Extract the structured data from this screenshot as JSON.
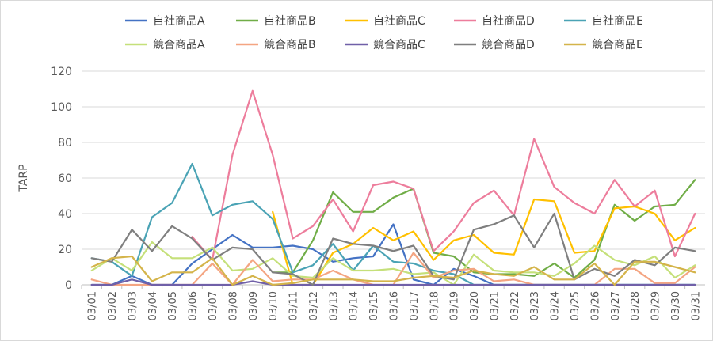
{
  "chart_data": {
    "type": "line",
    "ylabel": "TARP",
    "ylim": [
      0,
      120
    ],
    "yticks": [
      "0",
      "20",
      "40",
      "60",
      "80",
      "100",
      "120"
    ],
    "grid": "horizontal",
    "legend_position": "top",
    "categories": [
      "03/01",
      "03/02",
      "03/03",
      "03/04",
      "03/05",
      "03/06",
      "03/07",
      "03/08",
      "03/09",
      "03/10",
      "03/11",
      "03/12",
      "03/13",
      "03/14",
      "03/15",
      "03/16",
      "03/17",
      "03/18",
      "03/19",
      "03/20",
      "03/21",
      "03/22",
      "03/23",
      "03/24",
      "03/25",
      "03/26",
      "03/27",
      "03/28",
      "03/29",
      "03/30",
      "03/31"
    ],
    "series": [
      {
        "name": "自社商品A",
        "color": "#4472c4",
        "values": [
          0,
          0,
          5,
          0,
          0,
          12,
          20,
          28,
          21,
          21,
          22,
          20,
          13,
          15,
          16,
          34,
          3,
          0,
          9,
          5,
          0,
          0,
          0,
          0,
          0,
          0,
          0,
          0,
          0,
          0,
          0
        ]
      },
      {
        "name": "自社商品B",
        "color": "#70ad47",
        "values": [
          null,
          null,
          null,
          null,
          null,
          null,
          null,
          null,
          null,
          7,
          7,
          25,
          52,
          41,
          41,
          49,
          54,
          18,
          16,
          7,
          6,
          6,
          5,
          12,
          4,
          14,
          45,
          36,
          44,
          45,
          59
        ]
      },
      {
        "name": "自社商品C",
        "color": "#ffc000",
        "values": [
          null,
          null,
          null,
          null,
          null,
          null,
          null,
          null,
          null,
          41,
          0,
          0,
          18,
          23,
          32,
          25,
          30,
          14,
          25,
          28,
          18,
          17,
          48,
          47,
          18,
          19,
          43,
          44,
          40,
          25,
          32
        ]
      },
      {
        "name": "自社商品D",
        "color": "#ed7d9c",
        "values": [
          null,
          null,
          null,
          null,
          null,
          27,
          14,
          73,
          109,
          73,
          26,
          33,
          48,
          30,
          56,
          58,
          54,
          19,
          30,
          46,
          53,
          39,
          82,
          55,
          46,
          40,
          59,
          44,
          53,
          16,
          40
        ]
      },
      {
        "name": "自社商品E",
        "color": "#4aa3b5",
        "values": [
          15,
          13,
          5,
          38,
          46,
          68,
          39,
          45,
          47,
          37,
          7,
          11,
          23,
          8,
          22,
          13,
          12,
          8,
          6,
          0,
          0,
          0,
          0,
          0,
          0,
          0,
          0,
          0,
          0,
          0,
          0
        ]
      },
      {
        "name": "競合商品A",
        "color": "#c5e07a",
        "values": [
          8,
          15,
          8,
          24,
          15,
          15,
          21,
          8,
          9,
          15,
          5,
          4,
          15,
          8,
          8,
          9,
          6,
          7,
          0,
          17,
          8,
          7,
          7,
          5,
          12,
          22,
          14,
          11,
          16,
          4,
          11
        ]
      },
      {
        "name": "競合商品B",
        "color": "#f4a582",
        "values": [
          3,
          0,
          0,
          0,
          0,
          0,
          12,
          0,
          14,
          2,
          3,
          3,
          8,
          3,
          0,
          0,
          18,
          4,
          8,
          9,
          2,
          3,
          0,
          0,
          0,
          0,
          9,
          9,
          1,
          1,
          10
        ]
      },
      {
        "name": "競合商品C",
        "color": "#7060a8",
        "values": [
          0,
          0,
          3,
          0,
          0,
          0,
          0,
          0,
          2,
          0,
          0,
          0,
          0,
          0,
          0,
          0,
          0,
          0,
          0,
          0,
          0,
          0,
          0,
          0,
          0,
          0,
          0,
          0,
          0,
          0,
          0
        ]
      },
      {
        "name": "競合商品D",
        "color": "#7f7f7f",
        "values": [
          15,
          13,
          31,
          19,
          33,
          26,
          14,
          21,
          20,
          7,
          6,
          0,
          26,
          23,
          22,
          19,
          22,
          5,
          3,
          31,
          34,
          39,
          21,
          40,
          3,
          9,
          5,
          14,
          11,
          21,
          19
        ]
      },
      {
        "name": "競合商品E",
        "color": "#d4b44a",
        "values": [
          10,
          15,
          16,
          2,
          7,
          7,
          15,
          0,
          5,
          0,
          1,
          3,
          3,
          3,
          2,
          2,
          4,
          5,
          4,
          8,
          6,
          5,
          10,
          3,
          3,
          12,
          0,
          13,
          13,
          10,
          7
        ]
      }
    ]
  }
}
